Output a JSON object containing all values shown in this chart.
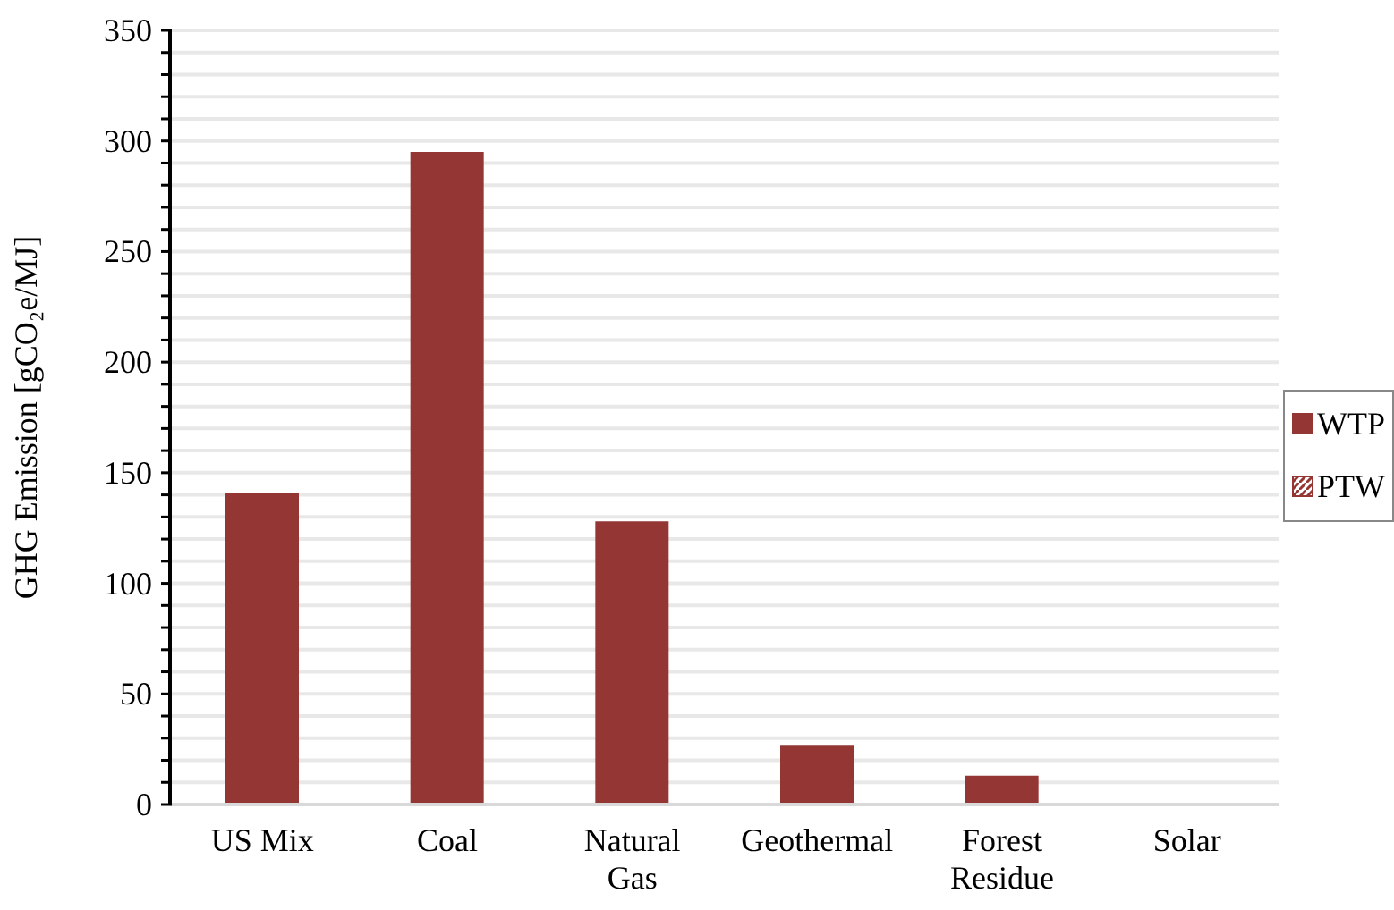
{
  "chart_data": {
    "type": "bar",
    "ylabel": "GHG Emission [gCO₂e/MJ]",
    "categories": [
      "US Mix",
      "Coal",
      "Natural Gas",
      "Geothermal",
      "Forest Residue",
      "Solar"
    ],
    "series": [
      {
        "name": "WTP",
        "color": "#943634",
        "values": [
          141,
          295,
          128,
          27,
          13,
          0
        ]
      },
      {
        "name": "PTW",
        "color": "#943634",
        "values": [
          0,
          0,
          0,
          0,
          0,
          0
        ]
      }
    ],
    "stacked": true,
    "ylim": [
      0,
      350
    ],
    "yticks": [
      0,
      {
        "value": 10,
        "label": null
      },
      {
        "value": 20,
        "label": null
      },
      {
        "value": 30,
        "label": null
      },
      {
        "value": 40,
        "label": null
      },
      50,
      {
        "value": 60,
        "label": null
      },
      {
        "value": 70,
        "label": null
      },
      {
        "value": 80,
        "label": null
      },
      {
        "value": 90,
        "label": null
      },
      100,
      {
        "value": 110,
        "label": null
      },
      {
        "value": 120,
        "label": null
      },
      {
        "value": 130,
        "label": null
      },
      {
        "value": 140,
        "label": null
      },
      150,
      {
        "value": 160,
        "label": null
      },
      {
        "value": 170,
        "label": null
      },
      {
        "value": 180,
        "label": null
      },
      {
        "value": 190,
        "label": null
      },
      200,
      {
        "value": 210,
        "label": null
      },
      {
        "value": 220,
        "label": null
      },
      {
        "value": 230,
        "label": null
      },
      {
        "value": 240,
        "label": null
      },
      250,
      {
        "value": 260,
        "label": null
      },
      {
        "value": 270,
        "label": null
      },
      {
        "value": 280,
        "label": null
      },
      {
        "value": 290,
        "label": null
      },
      300,
      {
        "value": 310,
        "label": null
      },
      {
        "value": 320,
        "label": null
      },
      {
        "value": 330,
        "label": null
      },
      {
        "value": 340,
        "label": null
      },
      350
    ],
    "grid": true,
    "legend": "right"
  }
}
